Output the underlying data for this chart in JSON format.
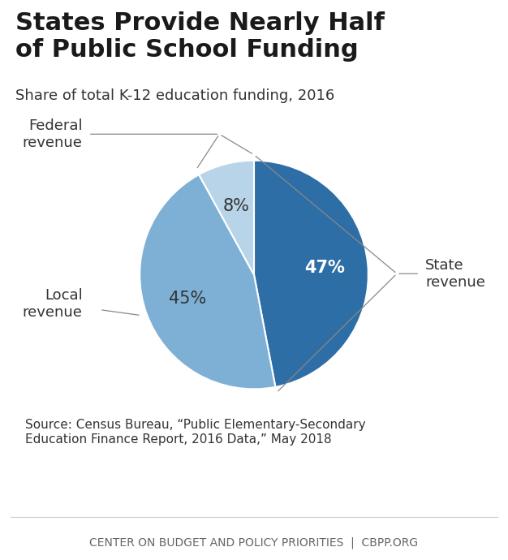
{
  "title": "States Provide Nearly Half\nof Public School Funding",
  "subtitle": "Share of total K-12 education funding, 2016",
  "slices": [
    47,
    45,
    8
  ],
  "labels": [
    "State\nrevenue",
    "Local\nrevenue",
    "Federal\nrevenue"
  ],
  "pct_labels": [
    "47%",
    "45%",
    "8%"
  ],
  "colors": [
    "#2E6EA6",
    "#7EB0D5",
    "#B8D4E8"
  ],
  "start_angle": 90,
  "source_text": "Source: Census Bureau, “Public Elementary-Secondary\nEducation Finance Report, 2016 Data,” May 2018",
  "footer_text": "CENTER ON BUDGET AND POLICY PRIORITIES  |  CBPP.ORG",
  "background_color": "#FFFFFF",
  "title_fontsize": 22,
  "subtitle_fontsize": 13,
  "pct_fontsize": 15,
  "label_fontsize": 13,
  "source_fontsize": 11,
  "footer_fontsize": 10
}
